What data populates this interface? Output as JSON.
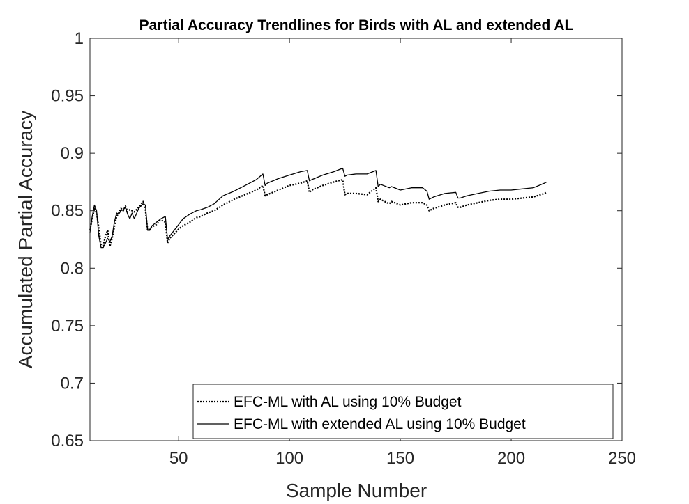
{
  "chart_data": {
    "type": "line",
    "title": "Partial Accuracy Trendlines for Birds with AL and extended AL",
    "xlabel": "Sample Number",
    "ylabel": "Accumulated Partial Accuracy",
    "xlim": [
      10,
      250
    ],
    "ylim": [
      0.65,
      1
    ],
    "xticks": [
      50,
      100,
      150,
      200,
      250
    ],
    "xtick_labels": [
      "50",
      "100",
      "150",
      "200",
      "250"
    ],
    "yticks": [
      0.65,
      0.7,
      0.75,
      0.8,
      0.85,
      0.9,
      0.95,
      1
    ],
    "ytick_labels": [
      "0.65",
      "0.7",
      "0.75",
      "0.8",
      "0.85",
      "0.9",
      "0.95",
      "1"
    ],
    "grid": false,
    "legend_position": "bottom-right",
    "series": [
      {
        "name": "EFC-ML with AL using 10% Budget",
        "style": "dotted",
        "color": "#000000",
        "x": [
          10,
          11,
          12,
          13,
          14,
          15,
          16,
          17,
          18,
          19,
          20,
          21,
          22,
          23,
          24,
          25,
          26,
          27,
          28,
          29,
          30,
          32,
          34,
          35,
          36,
          37,
          38,
          40,
          42,
          44,
          45,
          46,
          48,
          50,
          52,
          55,
          58,
          60,
          63,
          66,
          70,
          75,
          80,
          85,
          88,
          89,
          90,
          95,
          100,
          105,
          108,
          109,
          110,
          115,
          120,
          124,
          125,
          126,
          130,
          135,
          139,
          140,
          141,
          145,
          146,
          150,
          155,
          160,
          162,
          163,
          165,
          170,
          175,
          176,
          177,
          180,
          185,
          190,
          195,
          200,
          205,
          210,
          215,
          216
        ],
        "y": [
          0.833,
          0.843,
          0.852,
          0.848,
          0.835,
          0.82,
          0.82,
          0.828,
          0.833,
          0.819,
          0.826,
          0.836,
          0.845,
          0.848,
          0.852,
          0.85,
          0.854,
          0.849,
          0.851,
          0.85,
          0.849,
          0.853,
          0.858,
          0.851,
          0.833,
          0.834,
          0.836,
          0.838,
          0.842,
          0.84,
          0.822,
          0.826,
          0.83,
          0.834,
          0.837,
          0.84,
          0.844,
          0.845,
          0.848,
          0.85,
          0.855,
          0.86,
          0.864,
          0.868,
          0.872,
          0.863,
          0.864,
          0.868,
          0.872,
          0.874,
          0.876,
          0.866,
          0.868,
          0.872,
          0.875,
          0.877,
          0.864,
          0.865,
          0.865,
          0.864,
          0.87,
          0.858,
          0.86,
          0.856,
          0.858,
          0.855,
          0.857,
          0.857,
          0.855,
          0.85,
          0.852,
          0.855,
          0.857,
          0.853,
          0.853,
          0.855,
          0.857,
          0.859,
          0.86,
          0.86,
          0.861,
          0.862,
          0.865,
          0.866
        ]
      },
      {
        "name": "EFC-ML with extended AL using 10% Budget",
        "style": "solid",
        "color": "#000000",
        "x": [
          10,
          11,
          12,
          13,
          14,
          15,
          16,
          17,
          18,
          19,
          20,
          21,
          22,
          23,
          24,
          25,
          26,
          27,
          28,
          29,
          30,
          32,
          34,
          35,
          36,
          37,
          38,
          40,
          42,
          44,
          45,
          46,
          48,
          50,
          52,
          55,
          58,
          60,
          63,
          66,
          70,
          75,
          80,
          85,
          88,
          89,
          90,
          95,
          100,
          105,
          108,
          109,
          110,
          115,
          120,
          124,
          125,
          126,
          130,
          135,
          139,
          140,
          141,
          145,
          146,
          150,
          155,
          160,
          162,
          163,
          165,
          170,
          175,
          176,
          177,
          180,
          185,
          190,
          195,
          200,
          205,
          210,
          215,
          216
        ],
        "y": [
          0.831,
          0.845,
          0.855,
          0.85,
          0.828,
          0.818,
          0.818,
          0.822,
          0.826,
          0.823,
          0.828,
          0.84,
          0.848,
          0.847,
          0.85,
          0.851,
          0.853,
          0.847,
          0.843,
          0.848,
          0.843,
          0.852,
          0.856,
          0.855,
          0.833,
          0.833,
          0.837,
          0.84,
          0.843,
          0.845,
          0.825,
          0.828,
          0.833,
          0.838,
          0.843,
          0.847,
          0.85,
          0.851,
          0.853,
          0.856,
          0.863,
          0.867,
          0.872,
          0.877,
          0.882,
          0.872,
          0.874,
          0.878,
          0.881,
          0.884,
          0.885,
          0.876,
          0.877,
          0.881,
          0.884,
          0.887,
          0.88,
          0.881,
          0.882,
          0.882,
          0.885,
          0.871,
          0.873,
          0.87,
          0.871,
          0.868,
          0.87,
          0.87,
          0.867,
          0.86,
          0.862,
          0.865,
          0.866,
          0.861,
          0.861,
          0.863,
          0.865,
          0.867,
          0.868,
          0.868,
          0.869,
          0.87,
          0.874,
          0.875
        ]
      }
    ]
  }
}
